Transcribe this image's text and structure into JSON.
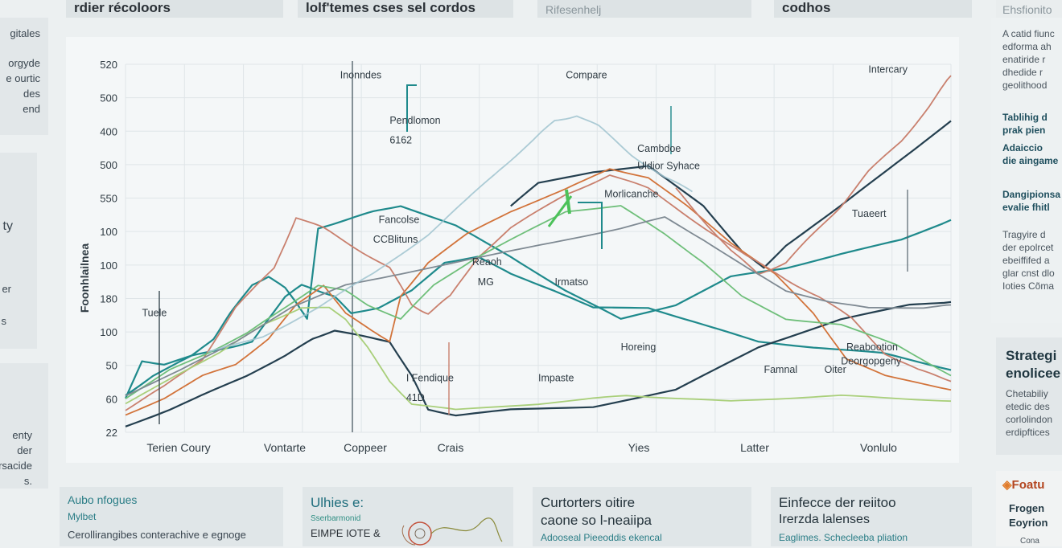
{
  "top_tabs": [
    {
      "label": "rdier récoloors",
      "muted": false
    },
    {
      "label": "lolf'temes cses sel cordos",
      "muted": false
    },
    {
      "label": "Rifesenhelj",
      "muted": true
    },
    {
      "label": "codhos",
      "muted": false
    },
    {
      "label": "Ehsfionito",
      "muted": true
    }
  ],
  "left_panel": {
    "block1": [
      "gitales",
      "orgyde",
      "e ourtic",
      "des",
      "end"
    ],
    "block2": [
      "ty",
      "er",
      "s"
    ],
    "block3": [
      "enty",
      "der",
      "rsacide",
      "s."
    ]
  },
  "right_panel": {
    "intro": [
      "A catid fiunc",
      "edforma ah",
      "enatiride r",
      "dhedide r",
      "geolithood"
    ],
    "bold1": [
      "Tablihig d",
      "prak pien",
      "Adaiccio",
      "die aingame"
    ],
    "bold2": [
      "Dangipionsa",
      "evalie fhitl"
    ],
    "text2": [
      "Tragyire d",
      "der epolrcet",
      "ebeiffifed a",
      "glar cnst dlo",
      "Ioties Cõma"
    ],
    "card_title": [
      "Strategi",
      "enolicee"
    ],
    "card_text": [
      "Chetabiliy",
      "etedic des",
      "corlolindon",
      "erdipftices"
    ],
    "footer_title": "Foatu",
    "footer_lines": [
      "Frogen",
      "Eoyrion"
    ],
    "footer_small": "Cona"
  },
  "bottom_cards": [
    {
      "title": "Aubo nfogues",
      "sub": "Mylbet",
      "line": "Cerollirangibes conterachive e egnoge"
    },
    {
      "title": "Ulhies e:",
      "sub": "EIMPE IOTE &",
      "line": "Sserbarmonid"
    },
    {
      "title": "Curtorters oitire",
      "sub": "caone so l-neaiipa",
      "line": "Adooseal Pieeoddis ekencal"
    },
    {
      "title": "Einfecce der reiitoo",
      "sub": "Irerzda lalenses",
      "line": "Eaglimes. Schecleeba pliation"
    }
  ],
  "chart_data": {
    "type": "line",
    "title": "",
    "ylabel": "Foonhlailnea",
    "xlabel": "",
    "ylim_ticks": [
      "520",
      "500",
      "400",
      "500",
      "550",
      "100",
      "100",
      "180",
      "100",
      "50",
      "60",
      "22"
    ],
    "x_ticks": [
      "Terien Coury",
      "Vontarte",
      "Coppeer",
      "Crais",
      "Yies",
      "Latter",
      "Vonlulo"
    ],
    "grid": true,
    "colors": {
      "teal": "#1f8a8c",
      "navy": "#243f4f",
      "orange": "#d2733a",
      "red": "#c9806e",
      "green": "#6fbf7a",
      "lightgreen": "#a9cf7a",
      "gray": "#7f8a93",
      "lightblue": "#9fc3cf",
      "highlight": "#4cc25a"
    },
    "series": [
      {
        "key": "teal_main",
        "color": "teal",
        "values": [
          [
            0,
            13
          ],
          [
            10,
            20
          ],
          [
            24,
            27
          ],
          [
            32,
            33
          ],
          [
            38,
            42
          ],
          [
            46,
            52
          ],
          [
            52,
            55
          ],
          [
            58,
            51
          ],
          [
            62,
            46
          ],
          [
            66,
            40
          ],
          [
            70,
            72
          ],
          [
            80,
            75
          ],
          [
            90,
            78
          ],
          [
            100,
            80
          ],
          [
            120,
            73
          ],
          [
            140,
            62
          ],
          [
            160,
            50
          ],
          [
            180,
            40
          ],
          [
            200,
            45
          ],
          [
            220,
            55
          ],
          [
            240,
            58
          ],
          [
            260,
            63
          ],
          [
            282,
            68
          ],
          [
            300,
            75
          ]
        ]
      },
      {
        "key": "teal_lower",
        "color": "teal",
        "values": [
          [
            0,
            12
          ],
          [
            6,
            25
          ],
          [
            14,
            24
          ],
          [
            24,
            27
          ],
          [
            38,
            30
          ],
          [
            46,
            32
          ],
          [
            52,
            40
          ],
          [
            58,
            48
          ],
          [
            64,
            52
          ],
          [
            70,
            50
          ],
          [
            76,
            48
          ],
          [
            82,
            42
          ],
          [
            92,
            44
          ],
          [
            104,
            50
          ],
          [
            116,
            60
          ],
          [
            128,
            62
          ],
          [
            140,
            56
          ],
          [
            156,
            50
          ],
          [
            170,
            44
          ],
          [
            190,
            44
          ],
          [
            210,
            38
          ],
          [
            230,
            32
          ],
          [
            250,
            30
          ],
          [
            275,
            28
          ],
          [
            300,
            22
          ]
        ]
      },
      {
        "key": "navy",
        "color": "navy",
        "values": [
          [
            0,
            2
          ],
          [
            16,
            8
          ],
          [
            30,
            14
          ],
          [
            44,
            20
          ],
          [
            58,
            27
          ],
          [
            68,
            33
          ],
          [
            76,
            36
          ],
          [
            86,
            34
          ],
          [
            96,
            32
          ],
          [
            104,
            20
          ],
          [
            110,
            8
          ],
          [
            120,
            6
          ],
          [
            140,
            8
          ],
          [
            170,
            9
          ],
          [
            200,
            15
          ],
          [
            230,
            30
          ],
          [
            260,
            40
          ],
          [
            285,
            45
          ],
          [
            300,
            46
          ]
        ]
      },
      {
        "key": "navy_peak",
        "color": "navy",
        "values": [
          [
            140,
            80
          ],
          [
            150,
            88
          ],
          [
            170,
            92
          ],
          [
            190,
            94
          ],
          [
            210,
            80
          ],
          [
            224,
            64
          ],
          [
            232,
            58
          ],
          [
            240,
            66
          ],
          [
            260,
            80
          ],
          [
            280,
            95
          ],
          [
            300,
            110
          ]
        ]
      },
      {
        "key": "orange",
        "color": "orange",
        "values": [
          [
            0,
            6
          ],
          [
            14,
            12
          ],
          [
            28,
            20
          ],
          [
            40,
            24
          ],
          [
            52,
            33
          ],
          [
            62,
            45
          ],
          [
            72,
            52
          ],
          [
            80,
            42
          ],
          [
            88,
            37
          ],
          [
            96,
            32
          ],
          [
            100,
            48
          ],
          [
            110,
            60
          ],
          [
            124,
            70
          ],
          [
            140,
            78
          ],
          [
            160,
            86
          ],
          [
            176,
            93
          ],
          [
            190,
            90
          ],
          [
            204,
            80
          ],
          [
            220,
            67
          ],
          [
            236,
            56
          ],
          [
            250,
            42
          ],
          [
            262,
            26
          ],
          [
            276,
            20
          ],
          [
            300,
            15
          ]
        ]
      },
      {
        "key": "red_peak",
        "color": "red",
        "values": [
          [
            0,
            8
          ],
          [
            14,
            16
          ],
          [
            28,
            26
          ],
          [
            40,
            44
          ],
          [
            54,
            58
          ],
          [
            62,
            76
          ],
          [
            72,
            72
          ],
          [
            84,
            65
          ],
          [
            96,
            58
          ],
          [
            104,
            45
          ],
          [
            110,
            42
          ],
          [
            118,
            48
          ],
          [
            128,
            62
          ],
          [
            140,
            72
          ],
          [
            160,
            84
          ],
          [
            176,
            91
          ],
          [
            190,
            86
          ],
          [
            208,
            74
          ],
          [
            226,
            62
          ],
          [
            240,
            54
          ],
          [
            252,
            48
          ],
          [
            264,
            40
          ],
          [
            276,
            28
          ],
          [
            288,
            22
          ],
          [
            300,
            18
          ]
        ]
      },
      {
        "key": "red_right",
        "color": "red",
        "values": [
          [
            200,
            86
          ],
          [
            210,
            75
          ],
          [
            220,
            64
          ],
          [
            230,
            56
          ],
          [
            240,
            60
          ],
          [
            250,
            70
          ],
          [
            260,
            80
          ],
          [
            270,
            92
          ],
          [
            282,
            103
          ],
          [
            292,
            115
          ],
          [
            300,
            126
          ]
        ]
      },
      {
        "key": "green",
        "color": "green",
        "values": [
          [
            0,
            12
          ],
          [
            16,
            22
          ],
          [
            30,
            28
          ],
          [
            44,
            35
          ],
          [
            58,
            44
          ],
          [
            70,
            52
          ],
          [
            80,
            50
          ],
          [
            88,
            45
          ],
          [
            100,
            40
          ],
          [
            112,
            52
          ],
          [
            128,
            62
          ],
          [
            144,
            70
          ],
          [
            160,
            78
          ],
          [
            180,
            80
          ],
          [
            196,
            70
          ],
          [
            210,
            60
          ],
          [
            224,
            48
          ],
          [
            240,
            40
          ],
          [
            260,
            38
          ],
          [
            280,
            31
          ],
          [
            300,
            20
          ]
        ]
      },
      {
        "key": "lightgreen",
        "color": "lightgreen",
        "values": [
          [
            0,
            10
          ],
          [
            18,
            20
          ],
          [
            34,
            28
          ],
          [
            50,
            38
          ],
          [
            64,
            44
          ],
          [
            74,
            44
          ],
          [
            80,
            40
          ],
          [
            88,
            30
          ],
          [
            96,
            18
          ],
          [
            104,
            10
          ],
          [
            120,
            8
          ],
          [
            150,
            10
          ],
          [
            170,
            12
          ],
          [
            182,
            13
          ],
          [
            200,
            12
          ],
          [
            220,
            11
          ],
          [
            240,
            12
          ],
          [
            260,
            13
          ],
          [
            280,
            12
          ],
          [
            300,
            11
          ]
        ]
      },
      {
        "key": "gray",
        "color": "gray",
        "values": [
          [
            0,
            13
          ],
          [
            20,
            22
          ],
          [
            40,
            32
          ],
          [
            60,
            44
          ],
          [
            80,
            52
          ],
          [
            100,
            56
          ],
          [
            130,
            62
          ],
          [
            160,
            68
          ],
          [
            180,
            72
          ],
          [
            196,
            76
          ],
          [
            210,
            68
          ],
          [
            226,
            58
          ],
          [
            240,
            50
          ],
          [
            256,
            46
          ],
          [
            270,
            44
          ],
          [
            290,
            44
          ],
          [
            300,
            45
          ]
        ]
      },
      {
        "key": "lightblue",
        "color": "lightblue",
        "values": [
          [
            30,
            28
          ],
          [
            50,
            34
          ],
          [
            70,
            44
          ],
          [
            90,
            56
          ],
          [
            110,
            70
          ],
          [
            124,
            82
          ],
          [
            136,
            93
          ],
          [
            148,
            103
          ],
          [
            156,
            110
          ],
          [
            164,
            112
          ],
          [
            172,
            108
          ],
          [
            184,
            98
          ],
          [
            196,
            90
          ],
          [
            206,
            85
          ]
        ]
      }
    ],
    "annotations": [
      {
        "text": "Inonndes",
        "x": 78,
        "y": 125
      },
      {
        "text": "Compare",
        "x": 160,
        "y": 125
      },
      {
        "text": "Pendlomon",
        "x": 96,
        "y": 109
      },
      {
        "text": "6162",
        "x": 96,
        "y": 102
      },
      {
        "text": "Cambdoe",
        "x": 186,
        "y": 99
      },
      {
        "text": "Uldior Syhace",
        "x": 186,
        "y": 93
      },
      {
        "text": "Morlicanche",
        "x": 174,
        "y": 83
      },
      {
        "text": "Fancolse",
        "x": 92,
        "y": 74
      },
      {
        "text": "CCBlituns",
        "x": 90,
        "y": 67
      },
      {
        "text": "Reaoh",
        "x": 126,
        "y": 59
      },
      {
        "text": "MG",
        "x": 128,
        "y": 52
      },
      {
        "text": "Irmatso",
        "x": 156,
        "y": 52
      },
      {
        "text": "Tuaeert",
        "x": 264,
        "y": 76
      },
      {
        "text": "Tuele",
        "x": 6,
        "y": 41
      },
      {
        "text": "Horeing",
        "x": 180,
        "y": 29
      },
      {
        "text": "Reabootion",
        "x": 262,
        "y": 29
      },
      {
        "text": "Deorgopgeny",
        "x": 260,
        "y": 24
      },
      {
        "text": "I Fendique",
        "x": 102,
        "y": 18
      },
      {
        "text": "Impaste",
        "x": 150,
        "y": 18
      },
      {
        "text": "41D",
        "x": 102,
        "y": 11
      },
      {
        "text": "Famnal",
        "x": 232,
        "y": 21
      },
      {
        "text": "Oiter",
        "x": 254,
        "y": 21
      },
      {
        "text": "Intercary",
        "x": 270,
        "y": 127
      }
    ]
  }
}
